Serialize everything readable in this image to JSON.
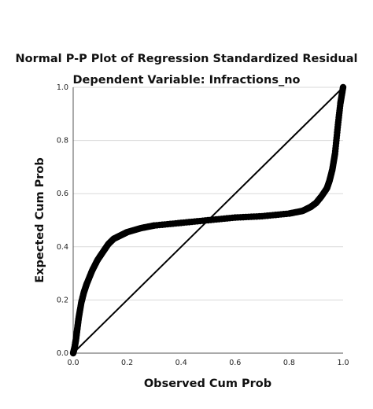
{
  "chart_data": {
    "type": "scatter",
    "title": "Normal P-P Plot of Regression Standardized Residual",
    "subtitle": "Dependent Variable: Infractions_no",
    "xlabel": "Observed Cum Prob",
    "ylabel": "Expected Cum Prob",
    "xlim": [
      0,
      1
    ],
    "ylim": [
      0,
      1
    ],
    "x_ticks": [
      "0.0",
      "0.2",
      "0.4",
      "0.6",
      "0.8",
      "1.0"
    ],
    "y_ticks": [
      "0.0",
      "0.2",
      "0.4",
      "0.6",
      "0.8",
      "1.0"
    ],
    "grid": "horizontal",
    "reference_line": {
      "x": [
        0,
        1
      ],
      "y": [
        0,
        1
      ]
    },
    "series": [
      {
        "x": [
          0.0,
          0.005,
          0.01,
          0.015,
          0.02,
          0.03,
          0.04,
          0.05,
          0.07,
          0.09,
          0.11,
          0.13,
          0.15,
          0.18,
          0.2,
          0.25,
          0.3,
          0.4,
          0.5,
          0.6,
          0.7,
          0.8,
          0.85,
          0.88,
          0.9,
          0.92,
          0.94,
          0.95,
          0.96,
          0.97,
          0.98,
          0.99,
          1.0
        ],
        "y": [
          0.0,
          0.02,
          0.05,
          0.09,
          0.13,
          0.19,
          0.23,
          0.26,
          0.31,
          0.35,
          0.38,
          0.41,
          0.43,
          0.445,
          0.455,
          0.47,
          0.48,
          0.49,
          0.5,
          0.51,
          0.515,
          0.525,
          0.535,
          0.55,
          0.565,
          0.59,
          0.62,
          0.65,
          0.69,
          0.75,
          0.85,
          0.94,
          1.0
        ]
      }
    ],
    "colors": {
      "points": "#000000",
      "reference_line": "#000000",
      "grid": "#d9d9d9",
      "axes": "#555555"
    }
  }
}
